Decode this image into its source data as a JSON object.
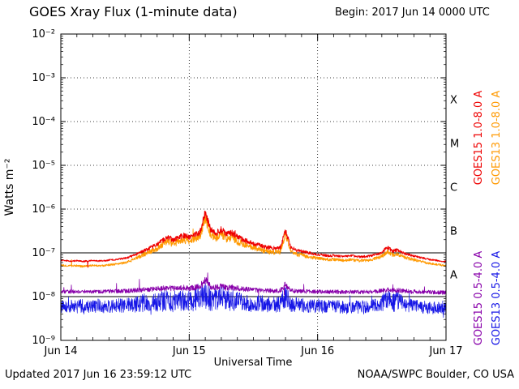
{
  "header": {
    "title": "GOES Xray Flux (1-minute data)",
    "begin_label": "Begin:  2017 Jun 14 0000 UTC"
  },
  "axes": {
    "ylabel": "Watts m⁻²",
    "xlabel": "Universal Time"
  },
  "footer": {
    "updated": "Updated 2017 Jun 16 23:59:12 UTC",
    "source": "NOAA/SWPC Boulder, CO USA"
  },
  "right_labels": [
    {
      "text": "GOES15 1.0-8.0 A",
      "color": "#ee0000"
    },
    {
      "text": "GOES13 1.0-8.0 A",
      "color": "#ff9900"
    },
    {
      "text": "GOES15 0.5-4.0 A",
      "color": "#8800aa"
    },
    {
      "text": "GOES13 0.5-4.0 A",
      "color": "#1515e6"
    }
  ],
  "chart_data": {
    "type": "line",
    "title": "GOES Xray Flux (1-minute data)",
    "xlabel": "Universal Time",
    "ylabel": "Watts m⁻²",
    "x_start": "2017 Jun 14 0000 UTC",
    "x_end": "2017 Jun 17 0000 UTC",
    "x_range_hours": [
      0,
      72
    ],
    "x_tick_hours": [
      0,
      24,
      48,
      72
    ],
    "x_tick_labels": [
      "Jun 14",
      "Jun 15",
      "Jun 16",
      "Jun 17"
    ],
    "y_scale": "log10",
    "y_log10_range": [
      -9,
      -2
    ],
    "y_tick_labels": [
      "10⁻²",
      "10⁻³",
      "10⁻⁴",
      "10⁻⁵",
      "10⁻⁶",
      "10⁻⁷",
      "10⁻⁸",
      "10⁻⁹"
    ],
    "grid": {
      "h_dotted_decades": [
        -3,
        -4,
        -5,
        -6
      ],
      "h_solid_decades": [
        -7,
        -8
      ],
      "v_dotted_hours": [
        24,
        48
      ]
    },
    "flare_classes": [
      {
        "label": "X",
        "log_center": -3.5
      },
      {
        "label": "M",
        "log_center": -4.5
      },
      {
        "label": "C",
        "log_center": -5.5
      },
      {
        "label": "B",
        "log_center": -6.5
      },
      {
        "label": "A",
        "log_center": -7.5
      }
    ],
    "series": [
      {
        "name": "GOES15 1.0-8.0 A",
        "color": "#ee0000",
        "stroke_width": 0.9,
        "noise": 0.018,
        "spike_prob": 0.004,
        "hourly_values": [
          6.8e-08,
          6.6e-08,
          6.5e-08,
          6.6e-08,
          6.4e-08,
          6.5e-08,
          6.7e-08,
          6.5e-08,
          6.6e-08,
          6.8e-08,
          7e-08,
          7.2e-08,
          7.6e-08,
          8.2e-08,
          9.2e-08,
          1.05e-07,
          1.2e-07,
          1.35e-07,
          1.55e-07,
          1.9e-07,
          2.3e-07,
          2e-07,
          2.2e-07,
          2.5e-07,
          2.3e-07,
          2.6e-07,
          3e-07,
          8e-07,
          3.3e-07,
          2.8e-07,
          3.4e-07,
          2.6e-07,
          2.9e-07,
          2.3e-07,
          2e-07,
          1.8e-07,
          1.65e-07,
          1.5e-07,
          1.4e-07,
          1.32e-07,
          1.28e-07,
          1.3e-07,
          3.2e-07,
          1.35e-07,
          1.15e-07,
          1.08e-07,
          1.02e-07,
          9.6e-08,
          9.2e-08,
          8.9e-08,
          8.6e-08,
          8.7e-08,
          8.5e-08,
          8.3e-08,
          8.6e-08,
          8.4e-08,
          8.1e-08,
          8.3e-08,
          8.6e-08,
          9.2e-08,
          1.02e-07,
          1.35e-07,
          1.1e-07,
          1.16e-07,
          1e-07,
          9.1e-08,
          8.5e-08,
          8e-08,
          7.5e-08,
          7e-08,
          6.8e-08,
          6.5e-08,
          6.3e-08
        ]
      },
      {
        "name": "GOES13 1.0-8.0 A",
        "color": "#ff9900",
        "stroke_width": 0.9,
        "noise": 0.022,
        "spike_prob": 0.004,
        "hourly_values": [
          5.2e-08,
          5.1e-08,
          5e-08,
          5.1e-08,
          4.9e-08,
          5e-08,
          5.2e-08,
          5e-08,
          5.1e-08,
          5.3e-08,
          5.5e-08,
          5.7e-08,
          6e-08,
          6.6e-08,
          7.4e-08,
          8.5e-08,
          9.7e-08,
          1.1e-07,
          1.25e-07,
          1.55e-07,
          1.85e-07,
          1.6e-07,
          1.8e-07,
          2e-07,
          1.85e-07,
          2.1e-07,
          2.4e-07,
          6.2e-07,
          2.6e-07,
          2.2e-07,
          2.7e-07,
          2.1e-07,
          2.3e-07,
          1.85e-07,
          1.6e-07,
          1.45e-07,
          1.35e-07,
          1.22e-07,
          1.12e-07,
          1.06e-07,
          1.03e-07,
          1.05e-07,
          2.6e-07,
          1.1e-07,
          9.4e-08,
          8.8e-08,
          8.3e-08,
          7.8e-08,
          7.5e-08,
          7.2e-08,
          7e-08,
          7.1e-08,
          6.9e-08,
          6.7e-08,
          7e-08,
          6.8e-08,
          6.6e-08,
          6.7e-08,
          7e-08,
          7.5e-08,
          8.3e-08,
          1.05e-07,
          8.9e-08,
          9.4e-08,
          8.1e-08,
          7.4e-08,
          6.9e-08,
          6.5e-08,
          6.1e-08,
          5.7e-08,
          5.5e-08,
          5.3e-08,
          5.1e-08
        ]
      },
      {
        "name": "GOES15 0.5-4.0 A",
        "color": "#8800aa",
        "stroke_width": 0.8,
        "noise": 0.045,
        "spike_prob": 0.012,
        "hourly_values": [
          1.3e-08,
          1.28e-08,
          1.3e-08,
          1.32e-08,
          1.28e-08,
          1.3e-08,
          1.31e-08,
          1.29e-08,
          1.3e-08,
          1.32e-08,
          1.33e-08,
          1.34e-08,
          1.35e-08,
          1.37e-08,
          1.4e-08,
          1.42e-08,
          1.45e-08,
          1.47e-08,
          1.5e-08,
          1.55e-08,
          1.6e-08,
          1.52e-08,
          1.56e-08,
          1.6e-08,
          1.56e-08,
          1.62e-08,
          1.68e-08,
          2.4e-08,
          1.7e-08,
          1.62e-08,
          1.72e-08,
          1.6e-08,
          1.64e-08,
          1.55e-08,
          1.5e-08,
          1.46e-08,
          1.42e-08,
          1.4e-08,
          1.38e-08,
          1.36e-08,
          1.35e-08,
          1.36e-08,
          1.9e-08,
          1.36e-08,
          1.33e-08,
          1.32e-08,
          1.31e-08,
          1.3e-08,
          1.3e-08,
          1.29e-08,
          1.28e-08,
          1.29e-08,
          1.28e-08,
          1.27e-08,
          1.29e-08,
          1.28e-08,
          1.27e-08,
          1.28e-08,
          1.29e-08,
          1.32e-08,
          1.36e-08,
          1.45e-08,
          1.4e-08,
          1.42e-08,
          1.36e-08,
          1.32e-08,
          1.3e-08,
          1.29e-08,
          1.27e-08,
          1.26e-08,
          1.25e-08,
          1.24e-08,
          1.23e-08
        ]
      },
      {
        "name": "GOES13 0.5-4.0 A",
        "color": "#1515e6",
        "stroke_width": 0.7,
        "noise": 0.15,
        "spike_prob": 0.05,
        "hourly_values": [
          6e-09,
          5.8e-09,
          6.2e-09,
          5.9e-09,
          6.1e-09,
          5.8e-09,
          6e-09,
          6.2e-09,
          5.9e-09,
          6e-09,
          6.1e-09,
          6.3e-09,
          6.2e-09,
          6.4e-09,
          6.6e-09,
          6.8e-09,
          7e-09,
          7.2e-09,
          7.5e-09,
          7.8e-09,
          8.2e-09,
          7.8e-09,
          8e-09,
          8.3e-09,
          8e-09,
          8.4e-09,
          8.8e-09,
          1.35e-08,
          9e-09,
          8.5e-09,
          9.2e-09,
          8.4e-09,
          8.6e-09,
          8e-09,
          7.7e-09,
          7.4e-09,
          7.2e-09,
          7e-09,
          6.8e-09,
          6.7e-09,
          6.6e-09,
          6.7e-09,
          9.5e-09,
          6.7e-09,
          6.4e-09,
          6.3e-09,
          6.2e-09,
          6.1e-09,
          6e-09,
          5.9e-09,
          5.9e-09,
          6e-09,
          5.9e-09,
          5.8e-09,
          5.9e-09,
          5.9e-09,
          5.8e-09,
          5.9e-09,
          6e-09,
          6.3e-09,
          6.8e-09,
          8.5e-09,
          7.6e-09,
          8e-09,
          7e-09,
          6.4e-09,
          6.1e-09,
          5.9e-09,
          5.7e-09,
          5.6e-09,
          5.5e-09,
          5.5e-09,
          5.4e-09
        ]
      }
    ]
  }
}
